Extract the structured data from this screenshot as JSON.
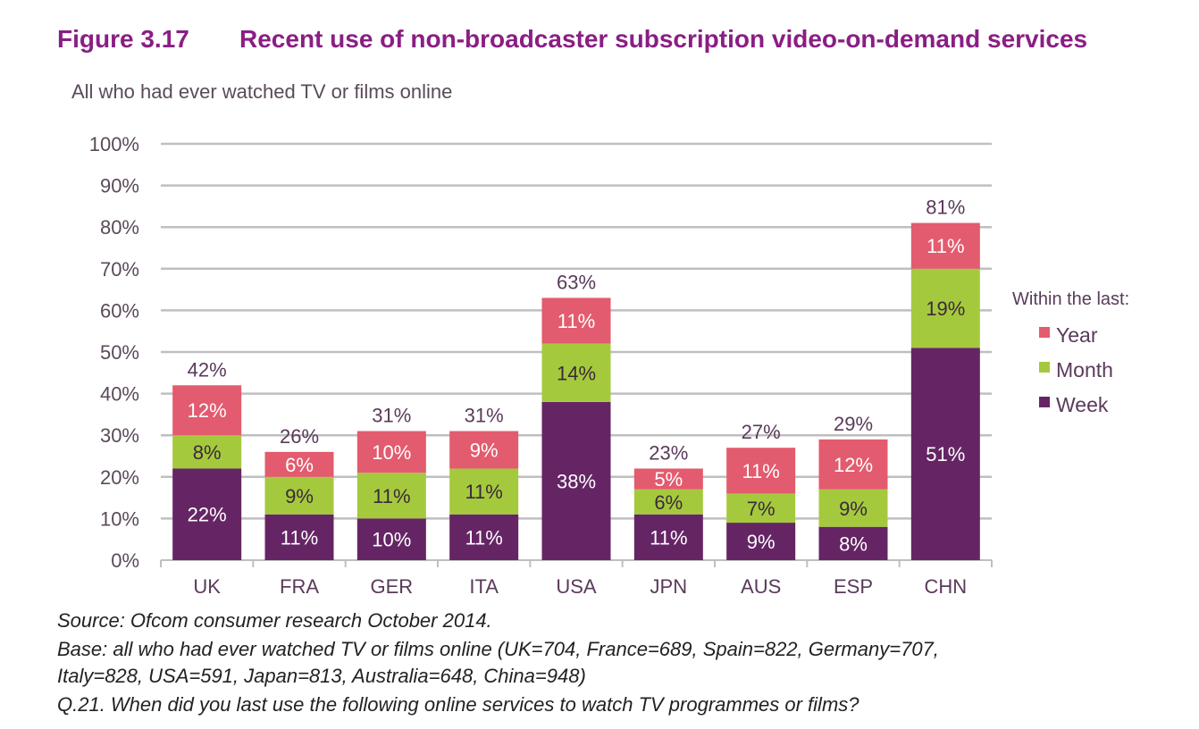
{
  "figure": {
    "label": "Figure 3.17",
    "title": "Recent use of non-broadcaster subscription video-on-demand services",
    "subtitle": "All who had ever watched TV or films online"
  },
  "colors": {
    "title": "#8a1e84",
    "week": "#652565",
    "month": "#a5c93d",
    "year": "#e35b6e",
    "grid": "#bfbfbf",
    "axis_text": "#5a4a5a",
    "total_text": "#5a3a5a"
  },
  "chart_data": {
    "type": "bar",
    "stacked": true,
    "title": "Recent use of non-broadcaster subscription video-on-demand services",
    "xlabel": "",
    "ylabel": "",
    "ylim": [
      0,
      100
    ],
    "y_ticks": [
      "0%",
      "10%",
      "20%",
      "30%",
      "40%",
      "50%",
      "60%",
      "70%",
      "80%",
      "90%",
      "100%"
    ],
    "categories": [
      "UK",
      "FRA",
      "GER",
      "ITA",
      "USA",
      "JPN",
      "AUS",
      "ESP",
      "CHN"
    ],
    "series": [
      {
        "name": "Week",
        "values": [
          22,
          11,
          10,
          11,
          38,
          11,
          9,
          8,
          51
        ]
      },
      {
        "name": "Month",
        "values": [
          8,
          9,
          11,
          11,
          14,
          6,
          7,
          9,
          19
        ]
      },
      {
        "name": "Year",
        "values": [
          12,
          6,
          10,
          9,
          11,
          5,
          11,
          12,
          11
        ]
      }
    ],
    "totals": [
      42,
      26,
      31,
      31,
      63,
      23,
      27,
      29,
      81
    ],
    "legend_title": "Within the last:",
    "legend_order": [
      "Year",
      "Month",
      "Week"
    ],
    "legend_position": "right",
    "grid": true
  },
  "footnotes": {
    "source": "Source: Ofcom consumer research October 2014.",
    "base_line1": "Base: all who had ever watched TV or films online (UK=704, France=689, Spain=822, Germany=707,",
    "base_line2": "Italy=828, USA=591, Japan=813, Australia=648, China=948)",
    "question": "Q.21. When did you last use the following online services to watch TV programmes or films?"
  }
}
